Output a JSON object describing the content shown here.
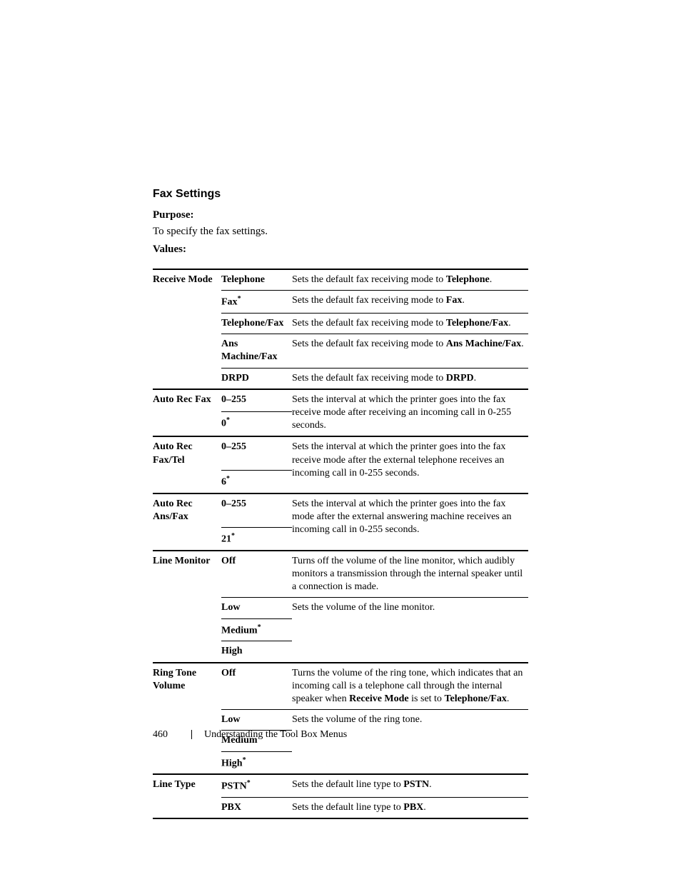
{
  "section_title": "Fax Settings",
  "purpose_label": "Purpose:",
  "purpose_text": "To specify the fax settings.",
  "values_label": "Values:",
  "rows": [
    {
      "setting": "Receive Mode",
      "value": "Telephone",
      "desc_pre": "Sets the default fax receiving mode to ",
      "desc_bold": "Telephone",
      "desc_post": ".",
      "top": "heavy"
    },
    {
      "setting": "",
      "value": "Fax",
      "value_asterisk": true,
      "desc_pre": "Sets the default fax receiving mode to ",
      "desc_bold": "Fax",
      "desc_post": ".",
      "top": "light"
    },
    {
      "setting": "",
      "value": "Telephone/Fax",
      "desc_pre": "Sets the default fax receiving mode to ",
      "desc_bold": "Telephone/Fax",
      "desc_post": ".",
      "top": "light"
    },
    {
      "setting": "",
      "value": "Ans Machine/Fax",
      "desc_pre": "Sets the default fax receiving mode to ",
      "desc_bold": "Ans Machine/Fax",
      "desc_post": ".",
      "top": "light"
    },
    {
      "setting": "",
      "value": "DRPD",
      "desc_pre": "Sets the default fax receiving mode to ",
      "desc_bold": "DRPD",
      "desc_post": ".",
      "top": "light"
    },
    {
      "setting": "Auto Rec Fax",
      "value": "0–255",
      "desc_plain": "Sets the interval at which the printer goes into the fax receive mode after receiving an incoming call in 0-255 seconds.",
      "top": "heavy",
      "desc_rowspan": 2
    },
    {
      "setting": "",
      "value": "0",
      "value_asterisk": true,
      "top": "light",
      "is_subrow": true
    },
    {
      "setting": "Auto Rec Fax/Tel",
      "value": "0–255",
      "desc_plain": "Sets the interval at which the printer goes into the fax receive mode after the external telephone receives an incoming call in 0-255 seconds.",
      "top": "heavy",
      "desc_rowspan": 2
    },
    {
      "setting": "",
      "value": "6",
      "value_asterisk": true,
      "top": "light",
      "is_subrow": true
    },
    {
      "setting": "Auto Rec Ans/Fax",
      "value": "0–255",
      "desc_plain": "Sets the interval at which the printer goes into the fax mode after the external answering machine receives an incoming call in 0-255 seconds.",
      "top": "heavy",
      "desc_rowspan": 2
    },
    {
      "setting": "",
      "value": "21",
      "value_asterisk": true,
      "top": "light",
      "is_subrow": true
    },
    {
      "setting": "Line Monitor",
      "value": "Off",
      "desc_plain": "Turns off the volume of the line monitor, which audibly monitors a transmission through the internal speaker until a connection is made.",
      "top": "heavy"
    },
    {
      "setting": "",
      "value": "Low",
      "desc_plain": "Sets the volume of the line monitor.",
      "top": "light",
      "desc_rowspan": 3
    },
    {
      "setting": "",
      "value": "Medium",
      "value_asterisk": true,
      "top": "light",
      "is_subrow": true
    },
    {
      "setting": "",
      "value": "High",
      "top": "light",
      "is_subrow": true
    },
    {
      "setting": "Ring Tone Volume",
      "value": "Off",
      "desc_parts": [
        {
          "t": "Turns the volume of the ring tone, which indicates that an incoming call is a telephone call through the internal speaker when "
        },
        {
          "b": "Receive Mode"
        },
        {
          "t": " is set to "
        },
        {
          "b": "Telephone/Fax"
        },
        {
          "t": "."
        }
      ],
      "top": "heavy"
    },
    {
      "setting": "",
      "value": "Low",
      "desc_plain": "Sets the volume of the ring tone.",
      "top": "light",
      "desc_rowspan": 3
    },
    {
      "setting": "",
      "value": "Medium",
      "top": "light",
      "is_subrow": true
    },
    {
      "setting": "",
      "value": "High",
      "value_asterisk": true,
      "top": "light",
      "is_subrow": true
    },
    {
      "setting": "Line Type",
      "value": "PSTN",
      "value_asterisk": true,
      "desc_pre": "Sets the default line type to ",
      "desc_bold": "PSTN",
      "desc_post": ".",
      "top": "heavy"
    },
    {
      "setting": "",
      "value": "PBX",
      "desc_pre": "Sets the default line type to ",
      "desc_bold": "PBX",
      "desc_post": ".",
      "top": "light",
      "bottom": "heavy"
    }
  ],
  "footer": {
    "page": "460",
    "chapter": "Understanding the Tool Box Menus"
  }
}
